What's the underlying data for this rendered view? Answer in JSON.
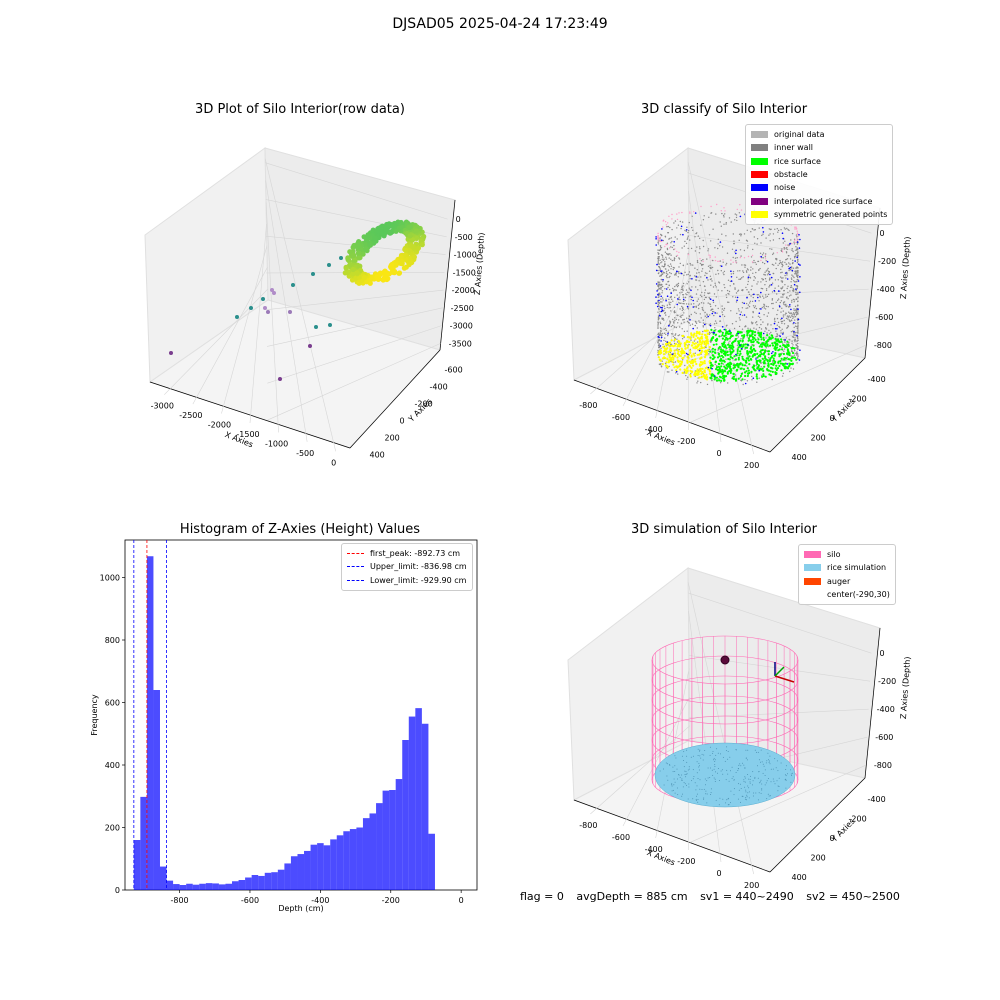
{
  "suptitle": "DJSAD05 2025-04-24 17:23:49",
  "panels": {
    "p1": {
      "title": "3D Plot of Silo Interior(row data)",
      "xlabel": "X Axies",
      "ylabel": "Y Axies",
      "zlabel": "Z Axies (Depth)",
      "xticks": [
        "-3000",
        "-2500",
        "-2000",
        "-1500",
        "-1000",
        "-500",
        "0"
      ],
      "yticks": [
        "-600",
        "-400",
        "-200",
        "0",
        "200",
        "400"
      ],
      "zticks": [
        "0",
        "-500",
        "-1000",
        "-1500",
        "-2000",
        "-2500",
        "-3000",
        "-3500"
      ]
    },
    "p2": {
      "title": "3D classify of Silo Interior",
      "xlabel": "X Axies",
      "ylabel": "Y Axies",
      "zlabel": "Z Axies (Depth)",
      "xticks": [
        "-800",
        "-600",
        "-400",
        "-200",
        "0",
        "200"
      ],
      "yticks": [
        "-400",
        "-200",
        "0",
        "200",
        "400"
      ],
      "zticks": [
        "0",
        "-200",
        "-400",
        "-600",
        "-800"
      ],
      "legend": [
        {
          "label": "original data",
          "color": "#b4b4b4"
        },
        {
          "label": "inner wall",
          "color": "#808080"
        },
        {
          "label": "rice surface",
          "color": "#00ff00"
        },
        {
          "label": "obstacle",
          "color": "#ff0000"
        },
        {
          "label": "noise",
          "color": "#0000ff"
        },
        {
          "label": "interpolated rice surface",
          "color": "#800080"
        },
        {
          "label": "symmetric generated points",
          "color": "#ffff00"
        }
      ]
    },
    "p4": {
      "title": "3D simulation of Silo Interior",
      "xlabel": "X Axies",
      "ylabel": "Y Axies",
      "zlabel": "Z Axies (Depth)",
      "xticks": [
        "-800",
        "-600",
        "-400",
        "-200",
        "0",
        "200"
      ],
      "yticks": [
        "-400",
        "-200",
        "0",
        "200",
        "400"
      ],
      "zticks": [
        "0",
        "-200",
        "-400",
        "-600",
        "-800"
      ],
      "legend": [
        {
          "label": "silo",
          "color": "#ff69b4"
        },
        {
          "label": "rice simulation",
          "color": "#87ceeb"
        },
        {
          "label": "auger",
          "color": "#ff4500"
        },
        {
          "label": "center(-290,30)",
          "color": ""
        }
      ]
    }
  },
  "chart_data": {
    "type": "bar",
    "title": "Histogram of Z-Axies (Height) Values",
    "xlabel": "Depth (cm)",
    "ylabel": "Frequency",
    "xlim": [
      -955,
      45
    ],
    "ylim": [
      0,
      1120
    ],
    "xticks": [
      -800,
      -600,
      -400,
      -200,
      0
    ],
    "yticks": [
      0,
      200,
      400,
      600,
      800,
      1000
    ],
    "bar_color": "#0000ff",
    "bin_edges_start": -930,
    "bin_width": 18.6,
    "values": [
      160,
      298,
      1068,
      640,
      75,
      30,
      19,
      16,
      20,
      17,
      20,
      22,
      21,
      18,
      20,
      28,
      32,
      40,
      48,
      45,
      55,
      57,
      65,
      85,
      108,
      115,
      125,
      145,
      150,
      143,
      162,
      175,
      188,
      195,
      200,
      230,
      245,
      278,
      318,
      320,
      355,
      480,
      555,
      582,
      532,
      180
    ],
    "series": [
      {
        "name": "first_peak: -892.73 cm",
        "value": -892.73,
        "color": "#ff0000",
        "style": "dashed"
      },
      {
        "name": "Upper_limit: -836.98 cm",
        "value": -836.98,
        "color": "#0000ff",
        "style": "dashed"
      },
      {
        "name": "Lower_limit: -929.90 cm",
        "value": -929.9,
        "color": "#0000ff",
        "style": "dashed"
      }
    ],
    "legend_position": "top-right"
  },
  "footer": {
    "flag": "flag = 0",
    "avg_depth": "avgDepth = 885 cm",
    "sv1": "sv1 = 440~2490",
    "sv2": "sv2 = 450~2500"
  }
}
